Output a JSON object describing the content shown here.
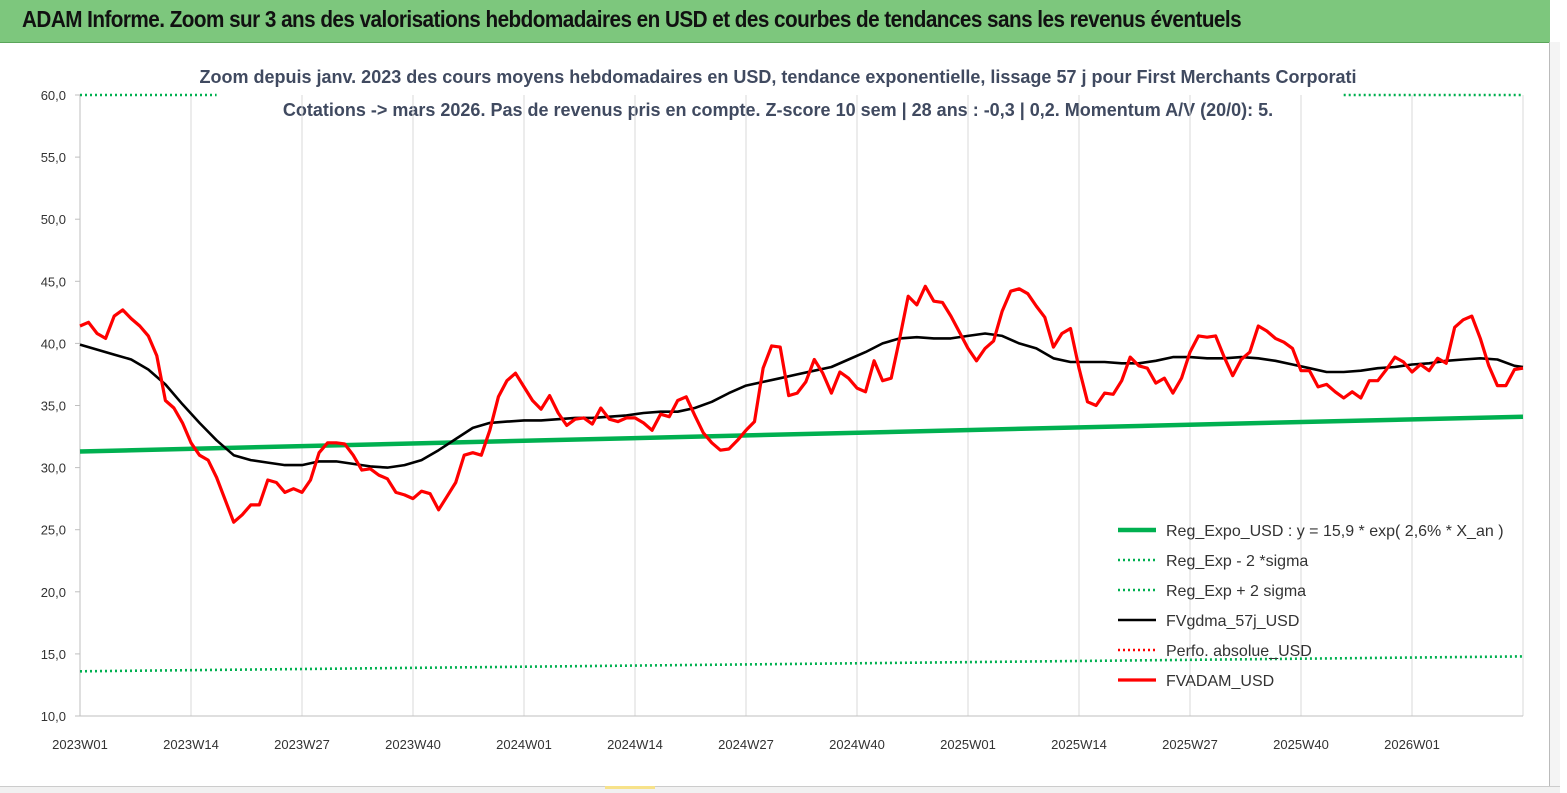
{
  "banner": {
    "title": "ADAM Informe. Zoom sur 3 ans des valorisations hebdomadaires en USD et des courbes de tendances sans les revenus éventuels"
  },
  "chart_data": {
    "type": "line",
    "title_lines": [
      "Zoom depuis janv. 2023 des cours moyens hebdomadaires en USD, tendance exponentielle, lissage 57 j pour First Merchants Corporati",
      "Cotations -> mars 2026. Pas de revenus pris en compte. Z-score 10 sem | 28 ans : -0,3 | 0,2. Momentum A/V (20/0): 5."
    ],
    "xlabel": "",
    "ylabel": "",
    "ylim": [
      10,
      60
    ],
    "y_ticks": [
      "10,0",
      "15,0",
      "20,0",
      "25,0",
      "30,0",
      "35,0",
      "40,0",
      "45,0",
      "50,0",
      "55,0",
      "60,0"
    ],
    "x_ticks": [
      "2023W01",
      "2023W14",
      "2023W27",
      "2023W40",
      "2024W01",
      "2024W14",
      "2024W27",
      "2024W40",
      "2025W01",
      "2025W14",
      "2025W27",
      "2025W40",
      "2026W01"
    ],
    "x_range_weeks": [
      0,
      169
    ],
    "grid": "vertical",
    "legend_position": "bottom-right",
    "series": [
      {
        "name": "Reg_Expo_USD : y = 15,9 * exp( 2,6% *  X_an )",
        "color": "#00b050",
        "style": "solid-thick",
        "x": [
          0,
          169
        ],
        "values": [
          31.3,
          34.1
        ]
      },
      {
        "name": "Reg_Exp - 2 *sigma",
        "color": "#00b050",
        "style": "dotted",
        "x": [
          0,
          169
        ],
        "values": [
          13.6,
          14.8
        ]
      },
      {
        "name": "Reg_Exp + 2 sigma",
        "color": "#00b050",
        "style": "dotted",
        "x": [
          0,
          16,
          148,
          169
        ],
        "values": [
          60.0,
          60.0,
          60.0,
          60.0
        ],
        "segments": [
          [
            0,
            16
          ],
          [
            148,
            169
          ]
        ]
      },
      {
        "name": "FVgdma_57j_USD",
        "color": "#000000",
        "style": "solid",
        "x": [
          0,
          2,
          4,
          6,
          8,
          10,
          12,
          14,
          16,
          18,
          20,
          22,
          24,
          26,
          28,
          30,
          32,
          34,
          36,
          38,
          40,
          42,
          44,
          46,
          48,
          50,
          52,
          54,
          56,
          58,
          60,
          62,
          64,
          66,
          68,
          70,
          72,
          74,
          76,
          78,
          80,
          82,
          84,
          86,
          88,
          90,
          92,
          94,
          96,
          98,
          100,
          102,
          104,
          106,
          108,
          110,
          112,
          114,
          116,
          118,
          120,
          122,
          124,
          126,
          128,
          130,
          132,
          134,
          136,
          138,
          140,
          142,
          144,
          146,
          148,
          150,
          152,
          154,
          156,
          158,
          160,
          162,
          164,
          166,
          168,
          169
        ],
        "values": [
          39.9,
          39.5,
          39.1,
          38.7,
          37.9,
          36.7,
          35.1,
          33.6,
          32.2,
          31.0,
          30.6,
          30.4,
          30.2,
          30.2,
          30.5,
          30.5,
          30.3,
          30.1,
          30.0,
          30.2,
          30.6,
          31.4,
          32.3,
          33.2,
          33.6,
          33.7,
          33.8,
          33.8,
          33.9,
          34.0,
          34.0,
          34.1,
          34.2,
          34.4,
          34.5,
          34.5,
          34.8,
          35.3,
          36.0,
          36.6,
          36.9,
          37.2,
          37.5,
          37.8,
          38.1,
          38.7,
          39.3,
          40.0,
          40.4,
          40.5,
          40.4,
          40.4,
          40.6,
          40.8,
          40.6,
          40.0,
          39.6,
          38.8,
          38.5,
          38.5,
          38.5,
          38.4,
          38.4,
          38.6,
          38.9,
          38.9,
          38.8,
          38.8,
          38.9,
          38.8,
          38.6,
          38.3,
          38.0,
          37.7,
          37.7,
          37.8,
          38.0,
          38.1,
          38.3,
          38.4,
          38.6,
          38.7,
          38.8,
          38.7,
          38.2,
          38.1
        ]
      },
      {
        "name": "Perfo. absolue_USD",
        "color": "#ff0000",
        "style": "dotted",
        "x": [],
        "values": []
      },
      {
        "name": "FVADAM_USD",
        "color": "#ff0000",
        "style": "solid-thick",
        "x": [
          0,
          1,
          2,
          3,
          4,
          5,
          6,
          7,
          8,
          9,
          10,
          11,
          12,
          13,
          14,
          15,
          16,
          17,
          18,
          19,
          20,
          21,
          22,
          23,
          24,
          25,
          26,
          27,
          28,
          29,
          30,
          31,
          32,
          33,
          34,
          35,
          36,
          37,
          38,
          39,
          40,
          41,
          42,
          43,
          44,
          45,
          46,
          47,
          48,
          49,
          50,
          51,
          52,
          53,
          54,
          55,
          56,
          57,
          58,
          59,
          60,
          61,
          62,
          63,
          64,
          65,
          66,
          67,
          68,
          69,
          70,
          71,
          72,
          73,
          74,
          75,
          76,
          77,
          78,
          79,
          80,
          81,
          82,
          83,
          84,
          85,
          86,
          87,
          88,
          89,
          90,
          91,
          92,
          93,
          94,
          95,
          96,
          97,
          98,
          99,
          100,
          101,
          102,
          103,
          104,
          105,
          106,
          107,
          108,
          109,
          110,
          111,
          112,
          113,
          114,
          115,
          116,
          117,
          118,
          119,
          120,
          121,
          122,
          123,
          124,
          125,
          126,
          127,
          128,
          129,
          130,
          131,
          132,
          133,
          134,
          135,
          136,
          137,
          138,
          139,
          140,
          141,
          142,
          143,
          144,
          145,
          146,
          147,
          148,
          149,
          150,
          151,
          152,
          153,
          154,
          155,
          156,
          157,
          158,
          159,
          160,
          161,
          162,
          163,
          164,
          165,
          166,
          167,
          168,
          169
        ],
        "values": [
          41.4,
          41.7,
          40.8,
          40.4,
          42.2,
          42.7,
          42.0,
          41.4,
          40.6,
          39.0,
          35.4,
          34.8,
          33.6,
          32.0,
          31.0,
          30.6,
          29.2,
          27.4,
          25.6,
          26.2,
          27.0,
          27.0,
          29.0,
          28.8,
          28.0,
          28.3,
          28.0,
          29.0,
          31.2,
          32.0,
          32.0,
          31.9,
          31.0,
          29.8,
          29.9,
          29.4,
          29.1,
          28.0,
          27.8,
          27.5,
          28.1,
          27.9,
          26.6,
          27.7,
          28.8,
          31.0,
          31.2,
          31.0,
          33.0,
          35.7,
          37.0,
          37.6,
          36.5,
          35.4,
          34.7,
          35.8,
          34.4,
          33.4,
          33.9,
          34.0,
          33.5,
          34.8,
          33.9,
          33.7,
          34.0,
          34.0,
          33.6,
          33.0,
          34.3,
          34.1,
          35.4,
          35.7,
          34.2,
          32.8,
          32.0,
          31.4,
          31.5,
          32.2,
          33.0,
          33.7,
          38.0,
          39.8,
          39.7,
          35.8,
          36.0,
          36.9,
          38.7,
          37.6,
          36.0,
          37.7,
          37.2,
          36.4,
          36.1,
          38.6,
          37.0,
          37.2,
          40.4,
          43.8,
          43.1,
          44.6,
          43.4,
          43.3,
          42.2,
          40.9,
          39.6,
          38.6,
          39.6,
          40.2,
          42.6,
          44.2,
          44.4,
          44.0,
          43.0,
          42.1,
          39.7,
          40.8,
          41.2,
          38.0,
          35.3,
          35.0,
          36.0,
          35.9,
          37.0,
          38.9,
          38.2,
          38.0,
          36.8,
          37.2,
          36.0,
          37.2,
          39.3,
          40.6,
          40.5,
          40.6,
          38.9,
          37.4,
          38.7,
          39.3,
          41.4,
          41.0,
          40.4,
          40.1,
          39.6,
          37.8,
          37.8,
          36.5,
          36.7,
          36.1,
          35.6,
          36.1,
          35.6,
          37.0,
          37.0,
          37.9,
          38.9,
          38.5,
          37.7,
          38.3,
          37.8,
          38.8,
          38.4,
          41.3,
          41.9,
          42.2,
          40.4,
          38.2,
          36.6,
          36.6,
          37.9,
          38.0
        ]
      }
    ]
  }
}
